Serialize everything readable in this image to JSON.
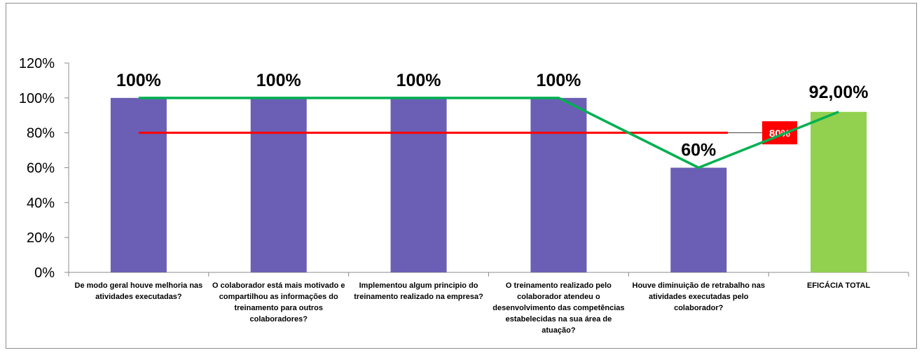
{
  "chart_data": {
    "type": "bar",
    "categories": [
      "De modo geral houve melhoria nas atividades executadas?",
      "O colaborador está mais motivado e compartilhou as informações do treinamento para outros colaboradores?",
      "Implementou algum principio do treinamento realizado na empresa?",
      "O treinamento realizado pelo colaborador atendeu o desenvolvimento das competências estabelecidas na sua área de atuação?",
      "Houve diminuição de retrabalho nas atividades executadas pelo colaborador?",
      "EFICÁCIA TOTAL"
    ],
    "values": [
      100,
      100,
      100,
      100,
      60,
      92
    ],
    "data_labels": [
      "100%",
      "100%",
      "100%",
      "100%",
      "60%",
      "92,00%"
    ],
    "bar_colors": [
      "#6a5fb5",
      "#6a5fb5",
      "#6a5fb5",
      "#6a5fb5",
      "#6a5fb5",
      "#92d050"
    ],
    "line_series": {
      "values": [
        100,
        100,
        100,
        100,
        60,
        92
      ],
      "color": "#00b050"
    },
    "reference_line": {
      "value": 80,
      "label": "80%",
      "color": "#ff0000"
    },
    "y_ticks": [
      "0%",
      "20%",
      "40%",
      "60%",
      "80%",
      "100%",
      "120%"
    ],
    "ylim": [
      0,
      120
    ],
    "title": "",
    "xlabel": "",
    "ylabel": "",
    "grid": false,
    "legend": "none"
  }
}
